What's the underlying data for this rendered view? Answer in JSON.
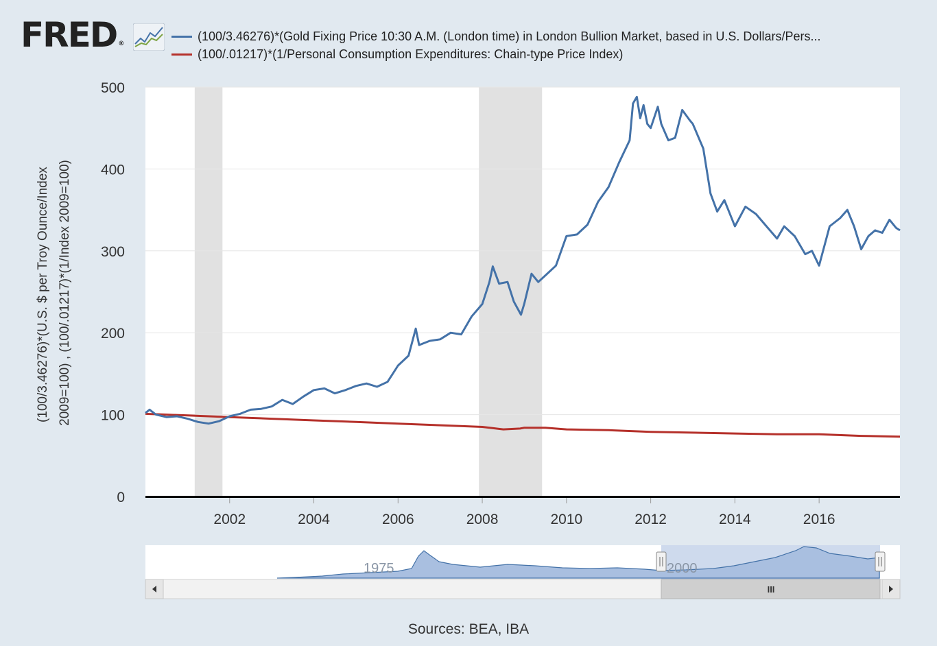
{
  "brand": {
    "logo_text": "FRED",
    "registered_mark": "®",
    "graph_icon": "line-graph-icon"
  },
  "colors": {
    "series_gold": "#4472a8",
    "series_pce": "#b5302a",
    "recession": "#e1e1e1",
    "navigator_fill": "#a9bfe0",
    "background": "#e1e9f0"
  },
  "sources": "Sources: BEA, IBA",
  "navigator": {
    "labels": [
      "1975",
      "2000"
    ],
    "scroll_left_icon": "arrow-left-icon",
    "scroll_right_icon": "arrow-right-icon",
    "scroll_thumb_icon": "grip-icon",
    "grip_symbol": "III"
  },
  "chart_data": {
    "type": "line",
    "title": "",
    "ylabel": "(100/3.46276)*(U.S. $ per Troy Ounce/Index 2009=100) , (100/.01217)*(1/Index 2009=100)",
    "xlabel": "",
    "xlim": [
      2000.0,
      2017.92
    ],
    "ylim": [
      0,
      500
    ],
    "y_ticks": [
      "0",
      "100",
      "200",
      "300",
      "400",
      "500"
    ],
    "x_ticks": [
      "2002",
      "2004",
      "2006",
      "2008",
      "2010",
      "2012",
      "2014",
      "2016"
    ],
    "grid": true,
    "legend_position": "top",
    "recessions": [
      [
        2001.17,
        2001.83
      ],
      [
        2007.92,
        2009.42
      ]
    ],
    "series": [
      {
        "name": "(100/3.46276)*(Gold Fixing Price 10:30 A.M. (London time) in London Bullion Market, based in U.S. Dollars/Pers...",
        "color": "#4472a8",
        "points": [
          [
            2000.0,
            102
          ],
          [
            2000.1,
            106
          ],
          [
            2000.25,
            100
          ],
          [
            2000.5,
            97
          ],
          [
            2000.75,
            98
          ],
          [
            2001.0,
            95
          ],
          [
            2001.25,
            91
          ],
          [
            2001.5,
            89
          ],
          [
            2001.75,
            92
          ],
          [
            2002.0,
            98
          ],
          [
            2002.25,
            101
          ],
          [
            2002.5,
            106
          ],
          [
            2002.75,
            107
          ],
          [
            2003.0,
            110
          ],
          [
            2003.25,
            118
          ],
          [
            2003.5,
            113
          ],
          [
            2003.75,
            122
          ],
          [
            2004.0,
            130
          ],
          [
            2004.25,
            132
          ],
          [
            2004.5,
            126
          ],
          [
            2004.75,
            130
          ],
          [
            2005.0,
            135
          ],
          [
            2005.25,
            138
          ],
          [
            2005.5,
            134
          ],
          [
            2005.75,
            140
          ],
          [
            2006.0,
            160
          ],
          [
            2006.25,
            172
          ],
          [
            2006.42,
            205
          ],
          [
            2006.5,
            185
          ],
          [
            2006.75,
            190
          ],
          [
            2007.0,
            192
          ],
          [
            2007.25,
            200
          ],
          [
            2007.5,
            198
          ],
          [
            2007.75,
            220
          ],
          [
            2008.0,
            235
          ],
          [
            2008.17,
            262
          ],
          [
            2008.25,
            281
          ],
          [
            2008.4,
            260
          ],
          [
            2008.6,
            262
          ],
          [
            2008.75,
            238
          ],
          [
            2008.92,
            222
          ],
          [
            2009.0,
            236
          ],
          [
            2009.17,
            272
          ],
          [
            2009.33,
            262
          ],
          [
            2009.5,
            270
          ],
          [
            2009.75,
            282
          ],
          [
            2010.0,
            318
          ],
          [
            2010.25,
            320
          ],
          [
            2010.5,
            332
          ],
          [
            2010.75,
            360
          ],
          [
            2011.0,
            378
          ],
          [
            2011.25,
            408
          ],
          [
            2011.5,
            435
          ],
          [
            2011.58,
            480
          ],
          [
            2011.67,
            488
          ],
          [
            2011.75,
            462
          ],
          [
            2011.83,
            478
          ],
          [
            2011.92,
            455
          ],
          [
            2012.0,
            450
          ],
          [
            2012.17,
            476
          ],
          [
            2012.25,
            455
          ],
          [
            2012.42,
            435
          ],
          [
            2012.58,
            438
          ],
          [
            2012.75,
            472
          ],
          [
            2012.92,
            460
          ],
          [
            2013.0,
            455
          ],
          [
            2013.25,
            425
          ],
          [
            2013.42,
            370
          ],
          [
            2013.58,
            348
          ],
          [
            2013.75,
            362
          ],
          [
            2014.0,
            330
          ],
          [
            2014.25,
            354
          ],
          [
            2014.5,
            345
          ],
          [
            2014.75,
            330
          ],
          [
            2015.0,
            315
          ],
          [
            2015.17,
            330
          ],
          [
            2015.42,
            318
          ],
          [
            2015.67,
            296
          ],
          [
            2015.83,
            300
          ],
          [
            2016.0,
            282
          ],
          [
            2016.25,
            330
          ],
          [
            2016.5,
            340
          ],
          [
            2016.67,
            350
          ],
          [
            2016.83,
            330
          ],
          [
            2017.0,
            302
          ],
          [
            2017.17,
            318
          ],
          [
            2017.33,
            325
          ],
          [
            2017.5,
            322
          ],
          [
            2017.67,
            338
          ],
          [
            2017.83,
            328
          ],
          [
            2017.92,
            325
          ]
        ]
      },
      {
        "name": "(100/.01217)*(1/Personal Consumption Expenditures: Chain-type Price Index)",
        "color": "#b5302a",
        "points": [
          [
            2000.0,
            101
          ],
          [
            2001.0,
            99
          ],
          [
            2002.0,
            97
          ],
          [
            2003.0,
            95
          ],
          [
            2004.0,
            93
          ],
          [
            2005.0,
            91
          ],
          [
            2006.0,
            89
          ],
          [
            2007.0,
            87
          ],
          [
            2008.0,
            85
          ],
          [
            2008.5,
            82
          ],
          [
            2008.9,
            83
          ],
          [
            2009.0,
            84
          ],
          [
            2009.5,
            84
          ],
          [
            2010.0,
            82
          ],
          [
            2011.0,
            81
          ],
          [
            2012.0,
            79
          ],
          [
            2013.0,
            78
          ],
          [
            2014.0,
            77
          ],
          [
            2015.0,
            76
          ],
          [
            2016.0,
            76
          ],
          [
            2017.0,
            74
          ],
          [
            2017.92,
            73
          ]
        ]
      }
    ]
  }
}
